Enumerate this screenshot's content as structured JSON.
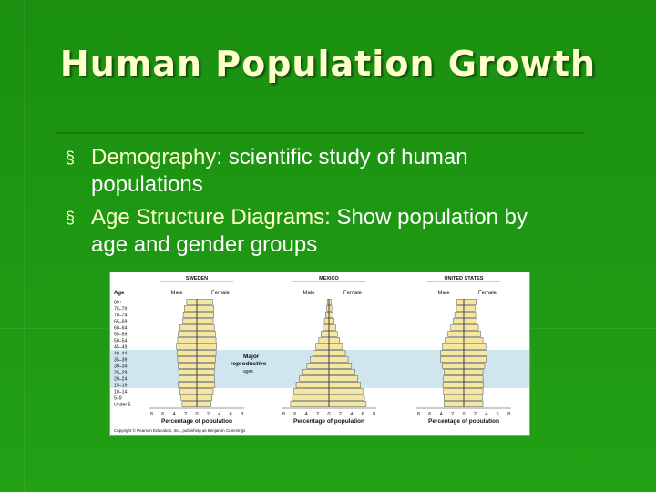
{
  "slide": {
    "title": "Human Population Growth"
  },
  "bullets": [
    {
      "term": "Demography",
      "sep": ":  ",
      "rest_line1": "scientific study of human",
      "rest_line2": "populations"
    },
    {
      "term": "Age Structure Diagrams",
      "sep": ":  ",
      "rest_line1": "Show population by",
      "rest_line2": "age and gender groups"
    }
  ],
  "bullet_glyph": "§",
  "colors": {
    "background": "#1f9a12",
    "title": "#ffffcc",
    "bar": "#f5e6a0",
    "reproductive_band": "#cfe6ee"
  },
  "figure": {
    "age_header": "Age",
    "age_groups": [
      "80+",
      "75–79",
      "70–74",
      "65–69",
      "60–64",
      "55–59",
      "50–54",
      "45–49",
      "40–44",
      "35–39",
      "30–34",
      "25–29",
      "20–24",
      "15–19",
      "10–14",
      "5–9",
      "Under 5"
    ],
    "reproductive_label_1": "Major",
    "reproductive_label_2": "reproductive",
    "reproductive_label_3": "ages",
    "x_axis_label": "Percentage of population",
    "x_ticks": [
      "8",
      "6",
      "4",
      "2",
      "0",
      "2",
      "4",
      "6",
      "8"
    ],
    "copyright": "Copyright © Pearson Education, Inc., publishing as Benjamin Cummings",
    "pyramids": [
      {
        "country": "SWEDEN",
        "male_label": "Male",
        "female_label": "Female",
        "male": [
          1.8,
          2.2,
          2.4,
          2.5,
          3.0,
          3.3,
          3.4,
          3.6,
          3.5,
          3.4,
          3.3,
          3.2,
          3.2,
          3.3,
          3.0,
          2.8,
          2.6
        ],
        "female": [
          2.8,
          3.0,
          3.0,
          2.9,
          3.1,
          3.3,
          3.4,
          3.5,
          3.4,
          3.3,
          3.2,
          3.1,
          3.1,
          3.2,
          2.9,
          2.7,
          2.5
        ]
      },
      {
        "country": "MEXICO",
        "male_label": "Male",
        "female_label": "Female",
        "male": [
          0.3,
          0.4,
          0.6,
          0.8,
          1.1,
          1.4,
          1.8,
          2.3,
          2.8,
          3.3,
          3.9,
          4.6,
          5.2,
          5.8,
          6.2,
          6.5,
          6.8
        ],
        "female": [
          0.4,
          0.5,
          0.7,
          0.9,
          1.2,
          1.5,
          1.9,
          2.4,
          2.9,
          3.4,
          4.0,
          4.6,
          5.1,
          5.6,
          6.0,
          6.3,
          6.6
        ]
      },
      {
        "country": "UNITED STATES",
        "male_label": "Male",
        "female_label": "Female",
        "male": [
          1.2,
          1.3,
          1.6,
          1.9,
          2.3,
          2.8,
          3.3,
          3.8,
          4.1,
          4.1,
          3.8,
          3.5,
          3.6,
          3.7,
          3.6,
          3.5,
          3.5
        ],
        "female": [
          2.2,
          2.0,
          2.1,
          2.3,
          2.6,
          3.0,
          3.4,
          3.9,
          4.1,
          4.0,
          3.7,
          3.4,
          3.4,
          3.5,
          3.4,
          3.3,
          3.4
        ]
      }
    ]
  }
}
